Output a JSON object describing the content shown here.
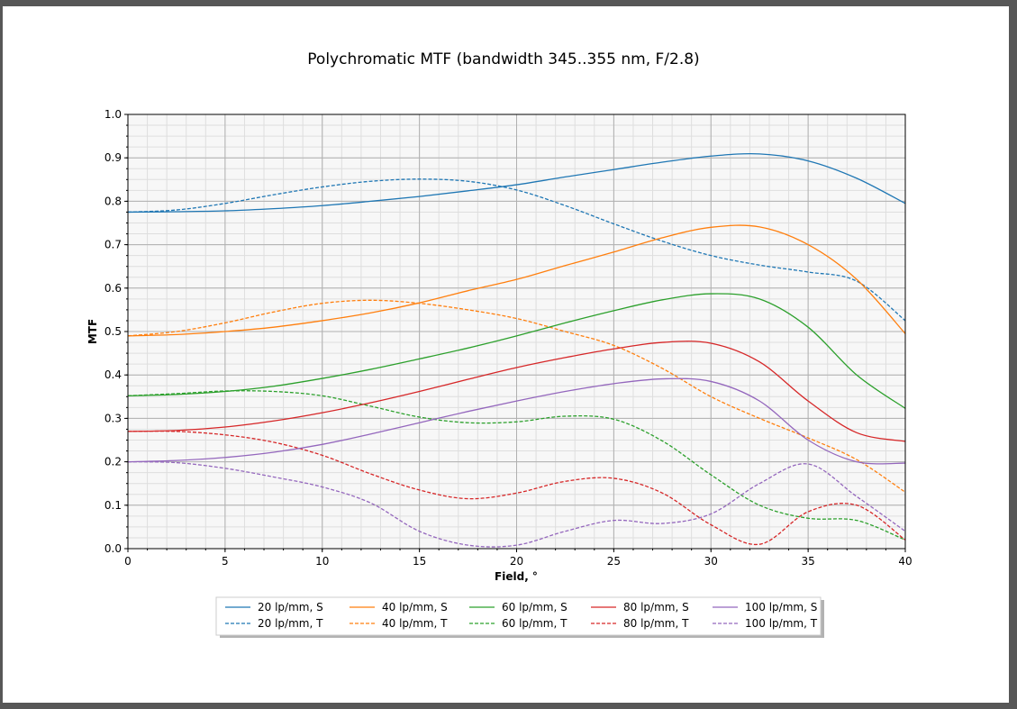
{
  "chart_data": {
    "type": "line",
    "title": "Polychromatic MTF (bandwidth 345..355 nm, F/2.8)",
    "xlabel": "Field, °",
    "ylabel": "MTF",
    "xlim": [
      0,
      40
    ],
    "ylim": [
      0,
      1.0
    ],
    "x_ticks": [
      "0",
      "5",
      "10",
      "15",
      "20",
      "25",
      "30",
      "35",
      "40"
    ],
    "y_ticks": [
      "0.0",
      "0.1",
      "0.2",
      "0.3",
      "0.4",
      "0.5",
      "0.6",
      "0.7",
      "0.8",
      "0.9",
      "1.0"
    ],
    "grid": true,
    "legend_position": "bottom-center",
    "colors": {
      "20": "#1f77b4",
      "40": "#ff7f0e",
      "60": "#2ca02c",
      "80": "#d62728",
      "100": "#9467bd"
    },
    "x": [
      0,
      2.5,
      5,
      7.5,
      10,
      12.5,
      15,
      17.5,
      20,
      22.5,
      25,
      27.5,
      30,
      32.5,
      35,
      37.5,
      40
    ],
    "series": [
      {
        "name": "20 lp/mm, S",
        "color": "#1f77b4",
        "style": "solid",
        "values": [
          0.775,
          0.776,
          0.778,
          0.783,
          0.79,
          0.8,
          0.811,
          0.824,
          0.838,
          0.856,
          0.873,
          0.89,
          0.904,
          0.909,
          0.893,
          0.853,
          0.795
        ]
      },
      {
        "name": "20 lp/mm, T",
        "color": "#1f77b4",
        "style": "dashed",
        "values": [
          0.775,
          0.78,
          0.795,
          0.815,
          0.833,
          0.846,
          0.851,
          0.846,
          0.826,
          0.79,
          0.748,
          0.708,
          0.675,
          0.653,
          0.637,
          0.616,
          0.525
        ]
      },
      {
        "name": "40 lp/mm, S",
        "color": "#ff7f0e",
        "style": "solid",
        "values": [
          0.49,
          0.493,
          0.5,
          0.51,
          0.525,
          0.543,
          0.566,
          0.594,
          0.62,
          0.652,
          0.683,
          0.716,
          0.74,
          0.741,
          0.7,
          0.62,
          0.495
        ]
      },
      {
        "name": "40 lp/mm, T",
        "color": "#ff7f0e",
        "style": "dashed",
        "values": [
          0.49,
          0.5,
          0.52,
          0.545,
          0.565,
          0.572,
          0.565,
          0.55,
          0.53,
          0.5,
          0.468,
          0.415,
          0.35,
          0.3,
          0.255,
          0.205,
          0.13
        ]
      },
      {
        "name": "60 lp/mm, S",
        "color": "#2ca02c",
        "style": "solid",
        "values": [
          0.352,
          0.355,
          0.362,
          0.374,
          0.392,
          0.413,
          0.437,
          0.462,
          0.49,
          0.52,
          0.548,
          0.573,
          0.587,
          0.575,
          0.51,
          0.4,
          0.323
        ]
      },
      {
        "name": "60 lp/mm, T",
        "color": "#2ca02c",
        "style": "dashed",
        "values": [
          0.352,
          0.357,
          0.363,
          0.362,
          0.352,
          0.328,
          0.303,
          0.29,
          0.292,
          0.305,
          0.298,
          0.248,
          0.17,
          0.1,
          0.07,
          0.065,
          0.02
        ]
      },
      {
        "name": "80 lp/mm, S",
        "color": "#d62728",
        "style": "solid",
        "values": [
          0.27,
          0.272,
          0.28,
          0.294,
          0.313,
          0.336,
          0.362,
          0.39,
          0.417,
          0.44,
          0.46,
          0.475,
          0.473,
          0.43,
          0.34,
          0.267,
          0.247
        ]
      },
      {
        "name": "80 lp/mm, T",
        "color": "#d62728",
        "style": "dashed",
        "values": [
          0.27,
          0.27,
          0.262,
          0.245,
          0.215,
          0.172,
          0.135,
          0.115,
          0.128,
          0.155,
          0.162,
          0.128,
          0.055,
          0.01,
          0.085,
          0.1,
          0.02
        ]
      },
      {
        "name": "100 lp/mm, S",
        "color": "#9467bd",
        "style": "solid",
        "values": [
          0.2,
          0.203,
          0.21,
          0.222,
          0.24,
          0.264,
          0.29,
          0.316,
          0.34,
          0.362,
          0.38,
          0.391,
          0.385,
          0.34,
          0.25,
          0.2,
          0.197
        ]
      },
      {
        "name": "100 lp/mm, T",
        "color": "#9467bd",
        "style": "dashed",
        "values": [
          0.2,
          0.198,
          0.185,
          0.165,
          0.142,
          0.105,
          0.04,
          0.008,
          0.008,
          0.04,
          0.065,
          0.058,
          0.08,
          0.15,
          0.195,
          0.12,
          0.04
        ]
      }
    ]
  }
}
